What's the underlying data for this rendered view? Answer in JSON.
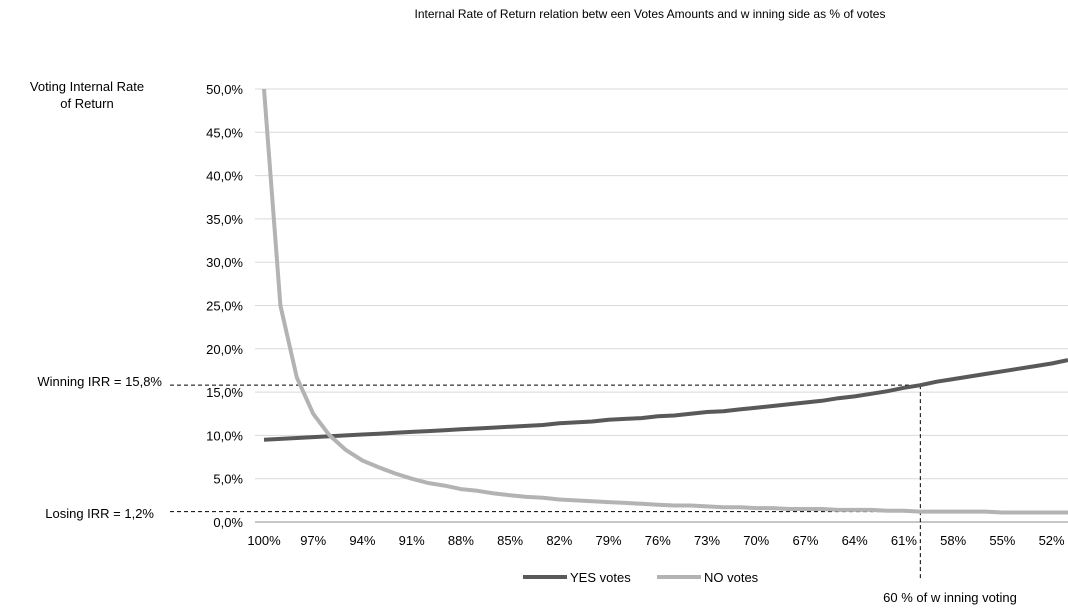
{
  "chart_data": {
    "type": "line",
    "title": "Internal Rate of Return relation betw een Votes Amounts and w inning side as % of votes",
    "ylabel": [
      "Voting Internal Rate",
      "of Return"
    ],
    "xlabel": "",
    "ylim": [
      0,
      50
    ],
    "yticks": [
      "0,0%",
      "5,0%",
      "10,0%",
      "15,0%",
      "20,0%",
      "25,0%",
      "30,0%",
      "35,0%",
      "40,0%",
      "45,0%",
      "50,0%"
    ],
    "xticks": [
      "100%",
      "97%",
      "94%",
      "91%",
      "88%",
      "85%",
      "82%",
      "79%",
      "76%",
      "73%",
      "70%",
      "67%",
      "64%",
      "61%",
      "58%",
      "55%",
      "52%"
    ],
    "x": [
      100,
      99,
      98,
      97,
      96,
      95,
      94,
      93,
      92,
      91,
      90,
      89,
      88,
      87,
      86,
      85,
      84,
      83,
      82,
      81,
      80,
      79,
      78,
      77,
      76,
      75,
      74,
      73,
      72,
      71,
      70,
      69,
      68,
      67,
      66,
      65,
      64,
      63,
      62,
      61,
      60,
      59,
      58,
      57,
      56,
      55,
      54,
      53,
      52,
      51
    ],
    "grid": true,
    "legend_position": "bottom",
    "series": [
      {
        "name": "YES votes",
        "color": "#595959",
        "values": [
          9.5,
          9.6,
          9.7,
          9.8,
          9.9,
          10.0,
          10.1,
          10.2,
          10.3,
          10.4,
          10.5,
          10.6,
          10.7,
          10.8,
          10.9,
          11.0,
          11.1,
          11.2,
          11.4,
          11.5,
          11.6,
          11.8,
          11.9,
          12.0,
          12.2,
          12.3,
          12.5,
          12.7,
          12.8,
          13.0,
          13.2,
          13.4,
          13.6,
          13.8,
          14.0,
          14.3,
          14.5,
          14.8,
          15.1,
          15.5,
          15.8,
          16.2,
          16.5,
          16.8,
          17.1,
          17.4,
          17.7,
          18.0,
          18.3,
          18.7
        ]
      },
      {
        "name": "NO votes",
        "color": "#b3b3b3",
        "values": [
          50.0,
          25.0,
          16.7,
          12.5,
          10.0,
          8.3,
          7.1,
          6.3,
          5.6,
          5.0,
          4.5,
          4.2,
          3.8,
          3.6,
          3.3,
          3.1,
          2.9,
          2.8,
          2.6,
          2.5,
          2.4,
          2.3,
          2.2,
          2.1,
          2.0,
          1.9,
          1.9,
          1.8,
          1.7,
          1.7,
          1.6,
          1.6,
          1.5,
          1.5,
          1.5,
          1.4,
          1.4,
          1.4,
          1.3,
          1.3,
          1.2,
          1.2,
          1.2,
          1.2,
          1.2,
          1.1,
          1.1,
          1.1,
          1.1,
          1.1
        ]
      }
    ],
    "annotations": {
      "winning_label": "Winning IRR = 15,8%",
      "winning_value": 15.8,
      "losing_label": "Losing IRR = 1,2%",
      "losing_value": 1.2,
      "vertical_label": "60 % of w inning voting",
      "vertical_x": 60
    }
  }
}
